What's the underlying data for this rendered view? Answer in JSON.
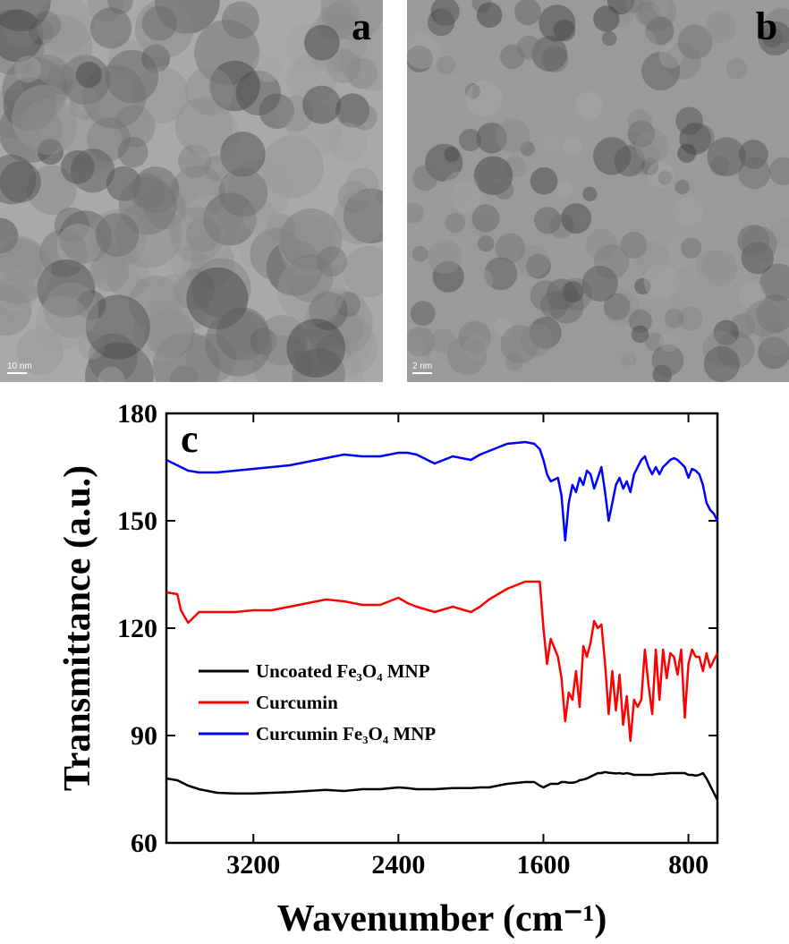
{
  "images": [
    {
      "label": "a",
      "scale_bar": "10 nm"
    },
    {
      "label": "b",
      "scale_bar": "2 nm"
    }
  ],
  "chart_data": {
    "type": "line",
    "panel_label": "c",
    "x_label": "Wavenumber (cm⁻¹)",
    "y_label": "Transmittance (a.u.)",
    "xlim": [
      3680,
      640
    ],
    "xticks": [
      3200,
      2400,
      1600,
      800
    ],
    "ylim": [
      60,
      180
    ],
    "yticks": [
      60,
      90,
      120,
      150,
      180
    ],
    "x": [
      3680,
      3620,
      3600,
      3560,
      3500,
      3400,
      3300,
      3200,
      3100,
      3000,
      2900,
      2800,
      2700,
      2600,
      2500,
      2400,
      2350,
      2300,
      2200,
      2100,
      2000,
      1950,
      1900,
      1800,
      1700,
      1650,
      1620,
      1600,
      1580,
      1560,
      1520,
      1500,
      1480,
      1460,
      1440,
      1420,
      1400,
      1380,
      1360,
      1340,
      1320,
      1300,
      1280,
      1260,
      1240,
      1220,
      1200,
      1180,
      1160,
      1140,
      1120,
      1100,
      1080,
      1060,
      1040,
      1020,
      1000,
      980,
      960,
      940,
      920,
      900,
      880,
      860,
      840,
      820,
      800,
      780,
      760,
      740,
      720,
      700,
      680,
      660,
      640
    ],
    "series": [
      {
        "name": "Uncoated Fe₃O₄ MNP",
        "color": "#000000",
        "values": [
          78,
          77.5,
          77,
          76,
          75,
          74,
          73.8,
          73.8,
          74,
          74.2,
          74.5,
          74.8,
          74.5,
          75,
          75,
          75.5,
          75.3,
          75,
          75,
          75.3,
          75.3,
          75.5,
          75.5,
          76.5,
          77,
          77,
          76,
          75.5,
          76,
          76.5,
          76.5,
          77,
          77,
          76.8,
          76.8,
          77,
          77.5,
          77.7,
          78,
          78.5,
          79,
          79.5,
          79.5,
          79.8,
          79.6,
          79.5,
          79.4,
          79.5,
          79.3,
          79.5,
          79.3,
          79,
          79,
          79,
          79,
          79,
          79,
          79.2,
          79.3,
          79.3,
          79.4,
          79.5,
          79.5,
          79.5,
          79.5,
          79.5,
          79,
          79,
          78.8,
          79,
          79.5,
          78,
          76,
          74,
          72
        ]
      },
      {
        "name": "Curcumin",
        "color": "#ff0000",
        "values": [
          130,
          129.5,
          125,
          121.5,
          124.5,
          124.5,
          124.5,
          125,
          125,
          126,
          127,
          128,
          127.5,
          126.5,
          126.5,
          128.5,
          127,
          126,
          124.5,
          126,
          124.5,
          126,
          128,
          131,
          133,
          133,
          133,
          120,
          110,
          117,
          112,
          106,
          94,
          102,
          100,
          108,
          98,
          115,
          112,
          116,
          122,
          120,
          121,
          110,
          96,
          108,
          97,
          107,
          93,
          101,
          88.5,
          100,
          98,
          100,
          114,
          104,
          96,
          114,
          100,
          114,
          106,
          113,
          112,
          107,
          114,
          95,
          110,
          114,
          112,
          112,
          108,
          113,
          109,
          111,
          113
        ]
      },
      {
        "name": "Curcumin Fe₃O₄ MNP",
        "color": "#0000ff",
        "values": [
          167,
          165.5,
          165,
          164,
          163.5,
          163.5,
          164,
          164.5,
          165,
          165.5,
          166.5,
          167.5,
          168.5,
          168,
          168,
          169,
          169,
          168.5,
          166,
          168,
          167,
          168.5,
          169.5,
          171.5,
          172,
          171.5,
          170,
          167,
          163,
          161,
          162,
          157,
          144.5,
          155,
          160,
          158,
          162,
          160,
          164,
          163,
          159,
          162,
          165,
          158,
          150,
          155,
          160,
          162,
          159,
          161,
          158,
          163,
          165,
          167,
          168,
          165,
          163,
          165,
          163,
          165,
          166,
          167,
          167.5,
          167,
          166,
          165,
          162,
          164.5,
          164,
          163,
          160,
          155,
          153,
          152,
          150
        ]
      }
    ]
  }
}
